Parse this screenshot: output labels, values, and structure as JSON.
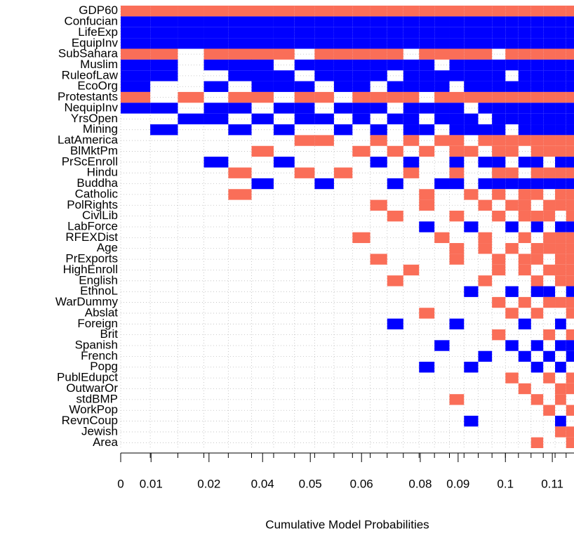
{
  "chart_data": {
    "type": "inclusion-image",
    "xlabel": "Cumulative Model Probabilities",
    "categories": [
      "GDP60",
      "Confucian",
      "LifeExp",
      "EquipInv",
      "SubSahara",
      "Muslim",
      "RuleofLaw",
      "EcoOrg",
      "Protestants",
      "NequipInv",
      "YrsOpen",
      "Mining",
      "LatAmerica",
      "BlMktPm",
      "PrScEnroll",
      "Hindu",
      "Buddha",
      "Catholic",
      "PolRights",
      "CivlLib",
      "LabForce",
      "RFEXDist",
      "Age",
      "PrExports",
      "HighEnroll",
      "English",
      "EthnoL",
      "WarDummy",
      "Abslat",
      "Foreign",
      "Brit",
      "Spanish",
      "French",
      "Popg",
      "PublEdupct",
      "OutwarOr",
      "stdBMP",
      "WorkPop",
      "RevnCoup",
      "Jewish",
      "Area"
    ],
    "model_probs": [
      0.0075,
      0.007,
      0.0066,
      0.0062,
      0.0059,
      0.0056,
      0.0053,
      0.0051,
      0.0049,
      0.0047,
      0.0045,
      0.0043,
      0.0041,
      0.004,
      0.0039,
      0.0038,
      0.0037,
      0.0036,
      0.0035,
      0.0034,
      0.0033,
      0.0032,
      0.0031,
      0.003,
      0.0028,
      0.002
    ],
    "rows": [
      [
        -1,
        -1,
        -1,
        -1,
        -1,
        -1,
        -1,
        -1,
        -1,
        -1,
        -1,
        -1,
        -1,
        -1,
        -1,
        -1,
        -1,
        -1,
        -1,
        -1,
        -1,
        -1,
        -1,
        -1,
        -1,
        -1
      ],
      [
        1,
        1,
        1,
        1,
        1,
        1,
        1,
        1,
        1,
        1,
        1,
        1,
        1,
        1,
        1,
        1,
        1,
        1,
        1,
        1,
        1,
        1,
        1,
        1,
        1,
        1
      ],
      [
        1,
        1,
        1,
        1,
        1,
        1,
        1,
        1,
        1,
        1,
        1,
        1,
        1,
        1,
        1,
        1,
        1,
        1,
        1,
        1,
        1,
        1,
        1,
        1,
        1,
        1
      ],
      [
        1,
        1,
        1,
        1,
        1,
        1,
        1,
        1,
        1,
        1,
        1,
        1,
        1,
        1,
        1,
        1,
        1,
        1,
        1,
        1,
        1,
        1,
        1,
        1,
        1,
        1
      ],
      [
        -1,
        -1,
        0,
        -1,
        -1,
        -1,
        -1,
        0,
        -1,
        -1,
        -1,
        -1,
        -1,
        0,
        -1,
        -1,
        -1,
        -1,
        -1,
        0,
        -1,
        -1,
        -1,
        -1,
        -1,
        -1
      ],
      [
        1,
        1,
        0,
        1,
        1,
        1,
        0,
        1,
        1,
        1,
        1,
        1,
        1,
        1,
        1,
        0,
        1,
        1,
        1,
        1,
        1,
        1,
        1,
        1,
        1,
        1
      ],
      [
        1,
        1,
        0,
        0,
        1,
        1,
        1,
        0,
        1,
        1,
        1,
        1,
        0,
        1,
        1,
        1,
        1,
        1,
        1,
        1,
        0,
        1,
        1,
        1,
        1,
        1
      ],
      [
        1,
        0,
        0,
        1,
        0,
        1,
        1,
        1,
        0,
        1,
        1,
        0,
        1,
        1,
        1,
        1,
        0,
        1,
        1,
        1,
        1,
        1,
        1,
        1,
        1,
        1
      ],
      [
        -1,
        0,
        -1,
        0,
        -1,
        -1,
        0,
        -1,
        -1,
        0,
        -1,
        -1,
        -1,
        -1,
        0,
        -1,
        -1,
        -1,
        -1,
        -1,
        -1,
        -1,
        -1,
        -1,
        -1,
        -1
      ],
      [
        1,
        1,
        0,
        1,
        1,
        0,
        1,
        1,
        0,
        1,
        1,
        1,
        0,
        1,
        1,
        1,
        1,
        0,
        1,
        1,
        1,
        1,
        1,
        1,
        1,
        1
      ],
      [
        0,
        0,
        1,
        1,
        0,
        1,
        0,
        1,
        1,
        0,
        1,
        0,
        1,
        1,
        0,
        1,
        1,
        1,
        0,
        1,
        1,
        1,
        1,
        1,
        1,
        1
      ],
      [
        0,
        1,
        0,
        0,
        1,
        0,
        1,
        0,
        0,
        1,
        0,
        1,
        0,
        1,
        1,
        0,
        1,
        1,
        1,
        1,
        0,
        1,
        1,
        1,
        1,
        1
      ],
      [
        0,
        0,
        0,
        0,
        0,
        0,
        0,
        -1,
        -1,
        0,
        0,
        -1,
        0,
        -1,
        0,
        -1,
        -1,
        0,
        -1,
        -1,
        -1,
        -1,
        -1,
        -1,
        -1,
        -1
      ],
      [
        0,
        0,
        0,
        0,
        0,
        -1,
        0,
        0,
        0,
        0,
        -1,
        0,
        -1,
        0,
        -1,
        0,
        -1,
        -1,
        0,
        -1,
        -1,
        0,
        -1,
        -1,
        -1,
        -1
      ],
      [
        0,
        0,
        0,
        1,
        0,
        0,
        1,
        0,
        0,
        0,
        0,
        1,
        0,
        1,
        0,
        0,
        1,
        0,
        1,
        1,
        0,
        1,
        1,
        0,
        1,
        1
      ],
      [
        0,
        0,
        0,
        0,
        -1,
        0,
        0,
        -1,
        0,
        -1,
        0,
        0,
        0,
        -1,
        0,
        0,
        -1,
        0,
        0,
        -1,
        -1,
        0,
        -1,
        -1,
        -1,
        -1
      ],
      [
        0,
        0,
        0,
        0,
        0,
        1,
        0,
        0,
        1,
        0,
        0,
        0,
        1,
        0,
        0,
        1,
        1,
        0,
        1,
        1,
        1,
        1,
        1,
        1,
        1,
        1
      ],
      [
        0,
        0,
        0,
        0,
        -1,
        0,
        0,
        0,
        0,
        0,
        0,
        0,
        0,
        0,
        -1,
        0,
        0,
        -1,
        0,
        -1,
        0,
        -1,
        -1,
        0,
        -1,
        -1
      ],
      [
        0,
        0,
        0,
        0,
        0,
        0,
        0,
        0,
        0,
        0,
        0,
        -1,
        0,
        0,
        -1,
        0,
        0,
        0,
        -1,
        0,
        -1,
        -1,
        0,
        -1,
        -1,
        -1
      ],
      [
        0,
        0,
        0,
        0,
        0,
        0,
        0,
        0,
        0,
        0,
        0,
        0,
        -1,
        0,
        0,
        0,
        -1,
        0,
        0,
        -1,
        0,
        -1,
        -1,
        -1,
        0,
        -1
      ],
      [
        0,
        0,
        0,
        0,
        0,
        0,
        0,
        0,
        0,
        0,
        0,
        0,
        0,
        0,
        1,
        0,
        0,
        1,
        0,
        0,
        1,
        0,
        1,
        0,
        1,
        1
      ],
      [
        0,
        0,
        0,
        0,
        0,
        0,
        0,
        0,
        0,
        0,
        -1,
        0,
        0,
        0,
        0,
        -1,
        0,
        0,
        -1,
        0,
        0,
        -1,
        0,
        -1,
        -1,
        -1
      ],
      [
        0,
        0,
        0,
        0,
        0,
        0,
        0,
        0,
        0,
        0,
        0,
        0,
        0,
        0,
        0,
        0,
        -1,
        0,
        -1,
        0,
        -1,
        0,
        -1,
        -1,
        -1,
        -1
      ],
      [
        0,
        0,
        0,
        0,
        0,
        0,
        0,
        0,
        0,
        0,
        0,
        -1,
        0,
        0,
        0,
        0,
        -1,
        0,
        0,
        -1,
        0,
        -1,
        -1,
        0,
        -1,
        -1
      ],
      [
        0,
        0,
        0,
        0,
        0,
        0,
        0,
        0,
        0,
        0,
        0,
        0,
        0,
        -1,
        0,
        0,
        0,
        0,
        0,
        -1,
        0,
        -1,
        0,
        -1,
        -1,
        -1
      ],
      [
        0,
        0,
        0,
        0,
        0,
        0,
        0,
        0,
        0,
        0,
        0,
        0,
        -1,
        0,
        0,
        0,
        0,
        0,
        -1,
        0,
        0,
        0,
        -1,
        0,
        -1,
        -1
      ],
      [
        0,
        0,
        0,
        0,
        0,
        0,
        0,
        0,
        0,
        0,
        0,
        0,
        0,
        0,
        0,
        0,
        0,
        1,
        0,
        0,
        1,
        0,
        1,
        1,
        0,
        1
      ],
      [
        0,
        0,
        0,
        0,
        0,
        0,
        0,
        0,
        0,
        0,
        0,
        0,
        0,
        0,
        0,
        0,
        0,
        0,
        0,
        -1,
        0,
        -1,
        0,
        -1,
        -1,
        -1
      ],
      [
        0,
        0,
        0,
        0,
        0,
        0,
        0,
        0,
        0,
        0,
        0,
        0,
        0,
        0,
        -1,
        0,
        0,
        0,
        0,
        0,
        -1,
        0,
        -1,
        0,
        0,
        -1
      ],
      [
        0,
        0,
        0,
        0,
        0,
        0,
        0,
        0,
        0,
        0,
        0,
        0,
        1,
        0,
        0,
        0,
        1,
        0,
        0,
        0,
        0,
        1,
        0,
        0,
        1,
        0
      ],
      [
        0,
        0,
        0,
        0,
        0,
        0,
        0,
        0,
        0,
        0,
        0,
        0,
        0,
        0,
        0,
        0,
        0,
        0,
        0,
        -1,
        0,
        0,
        0,
        -1,
        0,
        -1
      ],
      [
        0,
        0,
        0,
        0,
        0,
        0,
        0,
        0,
        0,
        0,
        0,
        0,
        0,
        0,
        0,
        1,
        0,
        0,
        0,
        0,
        1,
        0,
        1,
        0,
        1,
        1
      ],
      [
        0,
        0,
        0,
        0,
        0,
        0,
        0,
        0,
        0,
        0,
        0,
        0,
        0,
        0,
        0,
        0,
        0,
        0,
        1,
        0,
        0,
        1,
        0,
        1,
        0,
        1
      ],
      [
        0,
        0,
        0,
        0,
        0,
        0,
        0,
        0,
        0,
        0,
        0,
        0,
        0,
        0,
        1,
        0,
        0,
        1,
        0,
        0,
        0,
        0,
        1,
        0,
        1,
        0
      ],
      [
        0,
        0,
        0,
        0,
        0,
        0,
        0,
        0,
        0,
        0,
        0,
        0,
        0,
        0,
        0,
        0,
        0,
        0,
        0,
        0,
        -1,
        0,
        0,
        -1,
        0,
        -1
      ],
      [
        0,
        0,
        0,
        0,
        0,
        0,
        0,
        0,
        0,
        0,
        0,
        0,
        0,
        0,
        0,
        0,
        0,
        0,
        0,
        0,
        0,
        -1,
        0,
        0,
        -1,
        -1
      ],
      [
        0,
        0,
        0,
        0,
        0,
        0,
        0,
        0,
        0,
        0,
        0,
        0,
        0,
        0,
        0,
        0,
        -1,
        0,
        0,
        0,
        0,
        0,
        -1,
        0,
        -1,
        0
      ],
      [
        0,
        0,
        0,
        0,
        0,
        0,
        0,
        0,
        0,
        0,
        0,
        0,
        0,
        0,
        0,
        0,
        0,
        0,
        0,
        0,
        0,
        0,
        0,
        -1,
        0,
        -1
      ],
      [
        0,
        0,
        0,
        0,
        0,
        0,
        0,
        0,
        0,
        0,
        0,
        0,
        0,
        0,
        0,
        0,
        0,
        1,
        0,
        0,
        0,
        0,
        0,
        0,
        1,
        0
      ],
      [
        0,
        0,
        0,
        0,
        0,
        0,
        0,
        0,
        0,
        0,
        0,
        0,
        0,
        0,
        0,
        0,
        0,
        0,
        0,
        0,
        0,
        0,
        0,
        0,
        -1,
        -1
      ],
      [
        0,
        0,
        0,
        0,
        0,
        0,
        0,
        0,
        0,
        0,
        0,
        0,
        0,
        0,
        0,
        0,
        0,
        0,
        0,
        0,
        0,
        0,
        -1,
        0,
        0,
        -1
      ]
    ],
    "positive_color": "#0000ff",
    "negative_color": "#fa6e58",
    "xlim": [
      0,
      0.115
    ],
    "xticks": [
      0,
      {
        "value": 0.0077,
        "label": "0.01"
      },
      {
        "value": 0.0224,
        "label": "0.02"
      },
      {
        "value": 0.036,
        "label": "0.04"
      },
      {
        "value": 0.0481,
        "label": "0.05"
      },
      {
        "value": 0.0611,
        "label": "0.06"
      },
      {
        "value": 0.076,
        "label": "0.08"
      },
      {
        "value": 0.0856,
        "label": "0.09"
      },
      {
        "value": 0.0976,
        "label": "0.1"
      },
      {
        "value": 0.1095,
        "label": "0.11"
      }
    ],
    "grid": true
  }
}
